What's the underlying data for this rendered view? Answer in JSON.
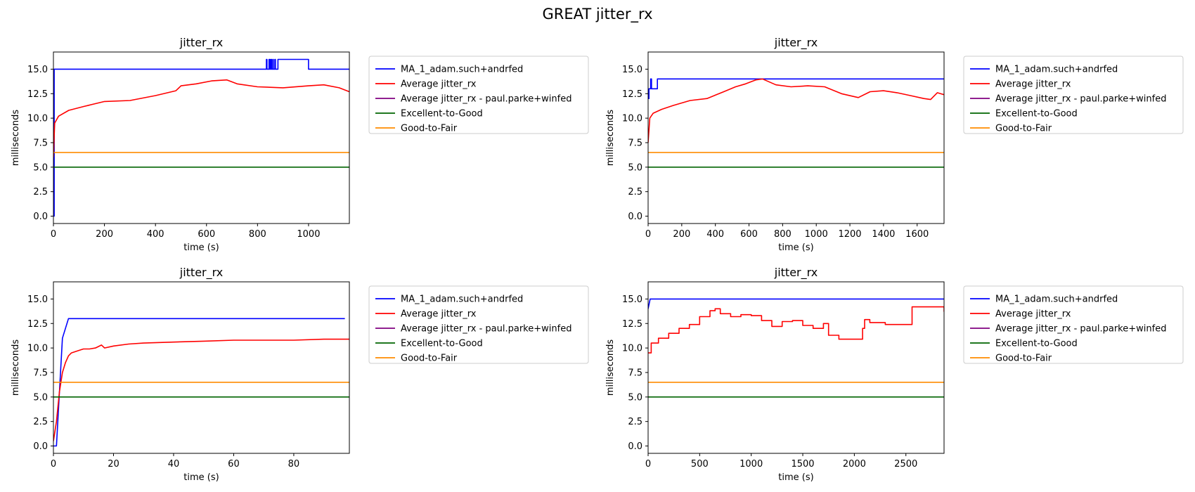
{
  "figure_title": "GREAT jitter_rx",
  "colors": {
    "ma": "#0000ff",
    "avg": "#ff0000",
    "avg_other": "#800080",
    "excellent_to_good": "#006400",
    "good_to_fair": "#ff8c00"
  },
  "chart_data": [
    {
      "type": "line",
      "title": "jitter_rx",
      "xlabel": "time (s)",
      "ylabel": "milliseconds",
      "xlim": [
        0,
        1160
      ],
      "ylim": [
        -0.75,
        16.75
      ],
      "xticks": [
        0,
        200,
        400,
        600,
        800,
        1000
      ],
      "yticks": [
        0.0,
        2.5,
        5.0,
        7.5,
        10.0,
        12.5,
        15.0
      ],
      "legend_position": "outside-right",
      "series": [
        {
          "name": "MA_1_adam.such+andrfed",
          "color": "#0000ff",
          "step": true,
          "x": [
            0,
            3,
            835,
            837,
            845,
            848,
            852,
            855,
            860,
            862,
            868,
            870,
            880,
            1000,
            1160
          ],
          "y": [
            0,
            15,
            16,
            15,
            16,
            15,
            16,
            15,
            16,
            15,
            16,
            15,
            16,
            15,
            15
          ]
        },
        {
          "name": "Average jitter_rx",
          "color": "#ff0000",
          "x": [
            0,
            5,
            20,
            60,
            120,
            200,
            300,
            400,
            480,
            500,
            560,
            620,
            680,
            720,
            800,
            900,
            1000,
            1060,
            1120,
            1160
          ],
          "y": [
            6.0,
            9.5,
            10.2,
            10.8,
            11.2,
            11.7,
            11.8,
            12.3,
            12.8,
            13.3,
            13.5,
            13.8,
            13.9,
            13.5,
            13.2,
            13.1,
            13.3,
            13.4,
            13.1,
            12.7
          ]
        },
        {
          "name": "Average jitter_rx - paul.parke+winfed",
          "color": "#800080",
          "x": [],
          "y": []
        },
        {
          "name": "Excellent-to-Good",
          "color": "#006400",
          "x": [
            0,
            1160
          ],
          "y": [
            5.0,
            5.0
          ]
        },
        {
          "name": "Good-to-Fair",
          "color": "#ff8c00",
          "x": [
            0,
            1160
          ],
          "y": [
            6.5,
            6.5
          ]
        }
      ]
    },
    {
      "type": "line",
      "title": "jitter_rx",
      "xlabel": "time (s)",
      "ylabel": "milliseconds",
      "xlim": [
        0,
        1760
      ],
      "ylim": [
        -0.75,
        16.75
      ],
      "xticks": [
        0,
        200,
        400,
        600,
        800,
        1000,
        1200,
        1400,
        1600
      ],
      "yticks": [
        0.0,
        2.5,
        5.0,
        7.5,
        10.0,
        12.5,
        15.0
      ],
      "legend_position": "outside-right",
      "series": [
        {
          "name": "MA_1_adam.such+andrfed",
          "color": "#0000ff",
          "step": true,
          "x": [
            0,
            5,
            15,
            20,
            30,
            55,
            1760
          ],
          "y": [
            12,
            13,
            14,
            13,
            13,
            14,
            14
          ]
        },
        {
          "name": "Average jitter_rx",
          "color": "#ff0000",
          "x": [
            0,
            10,
            30,
            80,
            150,
            250,
            350,
            450,
            520,
            580,
            640,
            680,
            760,
            850,
            950,
            1050,
            1150,
            1250,
            1320,
            1400,
            1480,
            1560,
            1640,
            1680,
            1720,
            1760
          ],
          "y": [
            7.5,
            10.0,
            10.5,
            10.9,
            11.3,
            11.8,
            12.0,
            12.7,
            13.2,
            13.5,
            13.9,
            14.0,
            13.4,
            13.2,
            13.3,
            13.2,
            12.5,
            12.1,
            12.7,
            12.8,
            12.6,
            12.3,
            12.0,
            11.9,
            12.6,
            12.4
          ]
        },
        {
          "name": "Average jitter_rx - paul.parke+winfed",
          "color": "#800080",
          "x": [],
          "y": []
        },
        {
          "name": "Excellent-to-Good",
          "color": "#006400",
          "x": [
            0,
            1760
          ],
          "y": [
            5.0,
            5.0
          ]
        },
        {
          "name": "Good-to-Fair",
          "color": "#ff8c00",
          "x": [
            0,
            1760
          ],
          "y": [
            6.5,
            6.5
          ]
        }
      ]
    },
    {
      "type": "line",
      "title": "jitter_rx",
      "xlabel": "time (s)",
      "ylabel": "milliseconds",
      "xlim": [
        0,
        98.5
      ],
      "ylim": [
        -0.75,
        16.75
      ],
      "xticks": [
        0,
        20,
        40,
        60,
        80
      ],
      "yticks": [
        0.0,
        2.5,
        5.0,
        7.5,
        10.0,
        12.5,
        15.0
      ],
      "legend_position": "outside-right",
      "series": [
        {
          "name": "MA_1_adam.such+andrfed",
          "color": "#0000ff",
          "x": [
            0,
            1,
            3,
            5,
            97
          ],
          "y": [
            0,
            0,
            11,
            13,
            13
          ]
        },
        {
          "name": "Average jitter_rx",
          "color": "#ff0000",
          "x": [
            0,
            1,
            2,
            3,
            4,
            5,
            6,
            8,
            10,
            12,
            14,
            16,
            17,
            20,
            25,
            30,
            40,
            50,
            60,
            70,
            80,
            90,
            98.5
          ],
          "y": [
            0.5,
            2.5,
            5.5,
            7.5,
            8.5,
            9.2,
            9.5,
            9.7,
            9.9,
            9.9,
            10.0,
            10.3,
            10.0,
            10.2,
            10.4,
            10.5,
            10.6,
            10.7,
            10.8,
            10.8,
            10.8,
            10.9,
            10.9
          ]
        },
        {
          "name": "Average jitter_rx - paul.parke+winfed",
          "color": "#800080",
          "x": [],
          "y": []
        },
        {
          "name": "Excellent-to-Good",
          "color": "#006400",
          "x": [
            0,
            98.5
          ],
          "y": [
            5.0,
            5.0
          ]
        },
        {
          "name": "Good-to-Fair",
          "color": "#ff8c00",
          "x": [
            0,
            98.5
          ],
          "y": [
            6.5,
            6.5
          ]
        }
      ]
    },
    {
      "type": "line",
      "title": "jitter_rx",
      "xlabel": "time (s)",
      "ylabel": "milliseconds",
      "xlim": [
        0,
        2870
      ],
      "ylim": [
        -0.75,
        16.75
      ],
      "xticks": [
        0,
        500,
        1000,
        1500,
        2000,
        2500
      ],
      "yticks": [
        0.0,
        2.5,
        5.0,
        7.5,
        10.0,
        12.5,
        15.0
      ],
      "legend_position": "outside-right",
      "series": [
        {
          "name": "MA_1_adam.such+andrfed",
          "color": "#0000ff",
          "x": [
            0,
            20,
            2870
          ],
          "y": [
            14,
            15,
            15
          ]
        },
        {
          "name": "Average jitter_rx",
          "color": "#ff0000",
          "step": true,
          "x": [
            0,
            30,
            100,
            200,
            300,
            400,
            500,
            600,
            650,
            700,
            800,
            900,
            1000,
            1100,
            1200,
            1300,
            1400,
            1500,
            1600,
            1700,
            1750,
            1800,
            1850,
            2080,
            2100,
            2150,
            2300,
            2560,
            2870
          ],
          "y": [
            9.5,
            10.5,
            11.0,
            11.5,
            12.0,
            12.4,
            13.2,
            13.8,
            14.0,
            13.5,
            13.2,
            13.4,
            13.3,
            12.8,
            12.2,
            12.7,
            12.8,
            12.3,
            12.0,
            12.5,
            11.3,
            11.3,
            10.9,
            12.0,
            12.9,
            12.6,
            12.4,
            14.2,
            13.7
          ]
        },
        {
          "name": "Average jitter_rx - paul.parke+winfed",
          "color": "#800080",
          "x": [],
          "y": []
        },
        {
          "name": "Excellent-to-Good",
          "color": "#006400",
          "x": [
            0,
            2870
          ],
          "y": [
            5.0,
            5.0
          ]
        },
        {
          "name": "Good-to-Fair",
          "color": "#ff8c00",
          "x": [
            0,
            2870
          ],
          "y": [
            6.5,
            6.5
          ]
        }
      ]
    }
  ]
}
